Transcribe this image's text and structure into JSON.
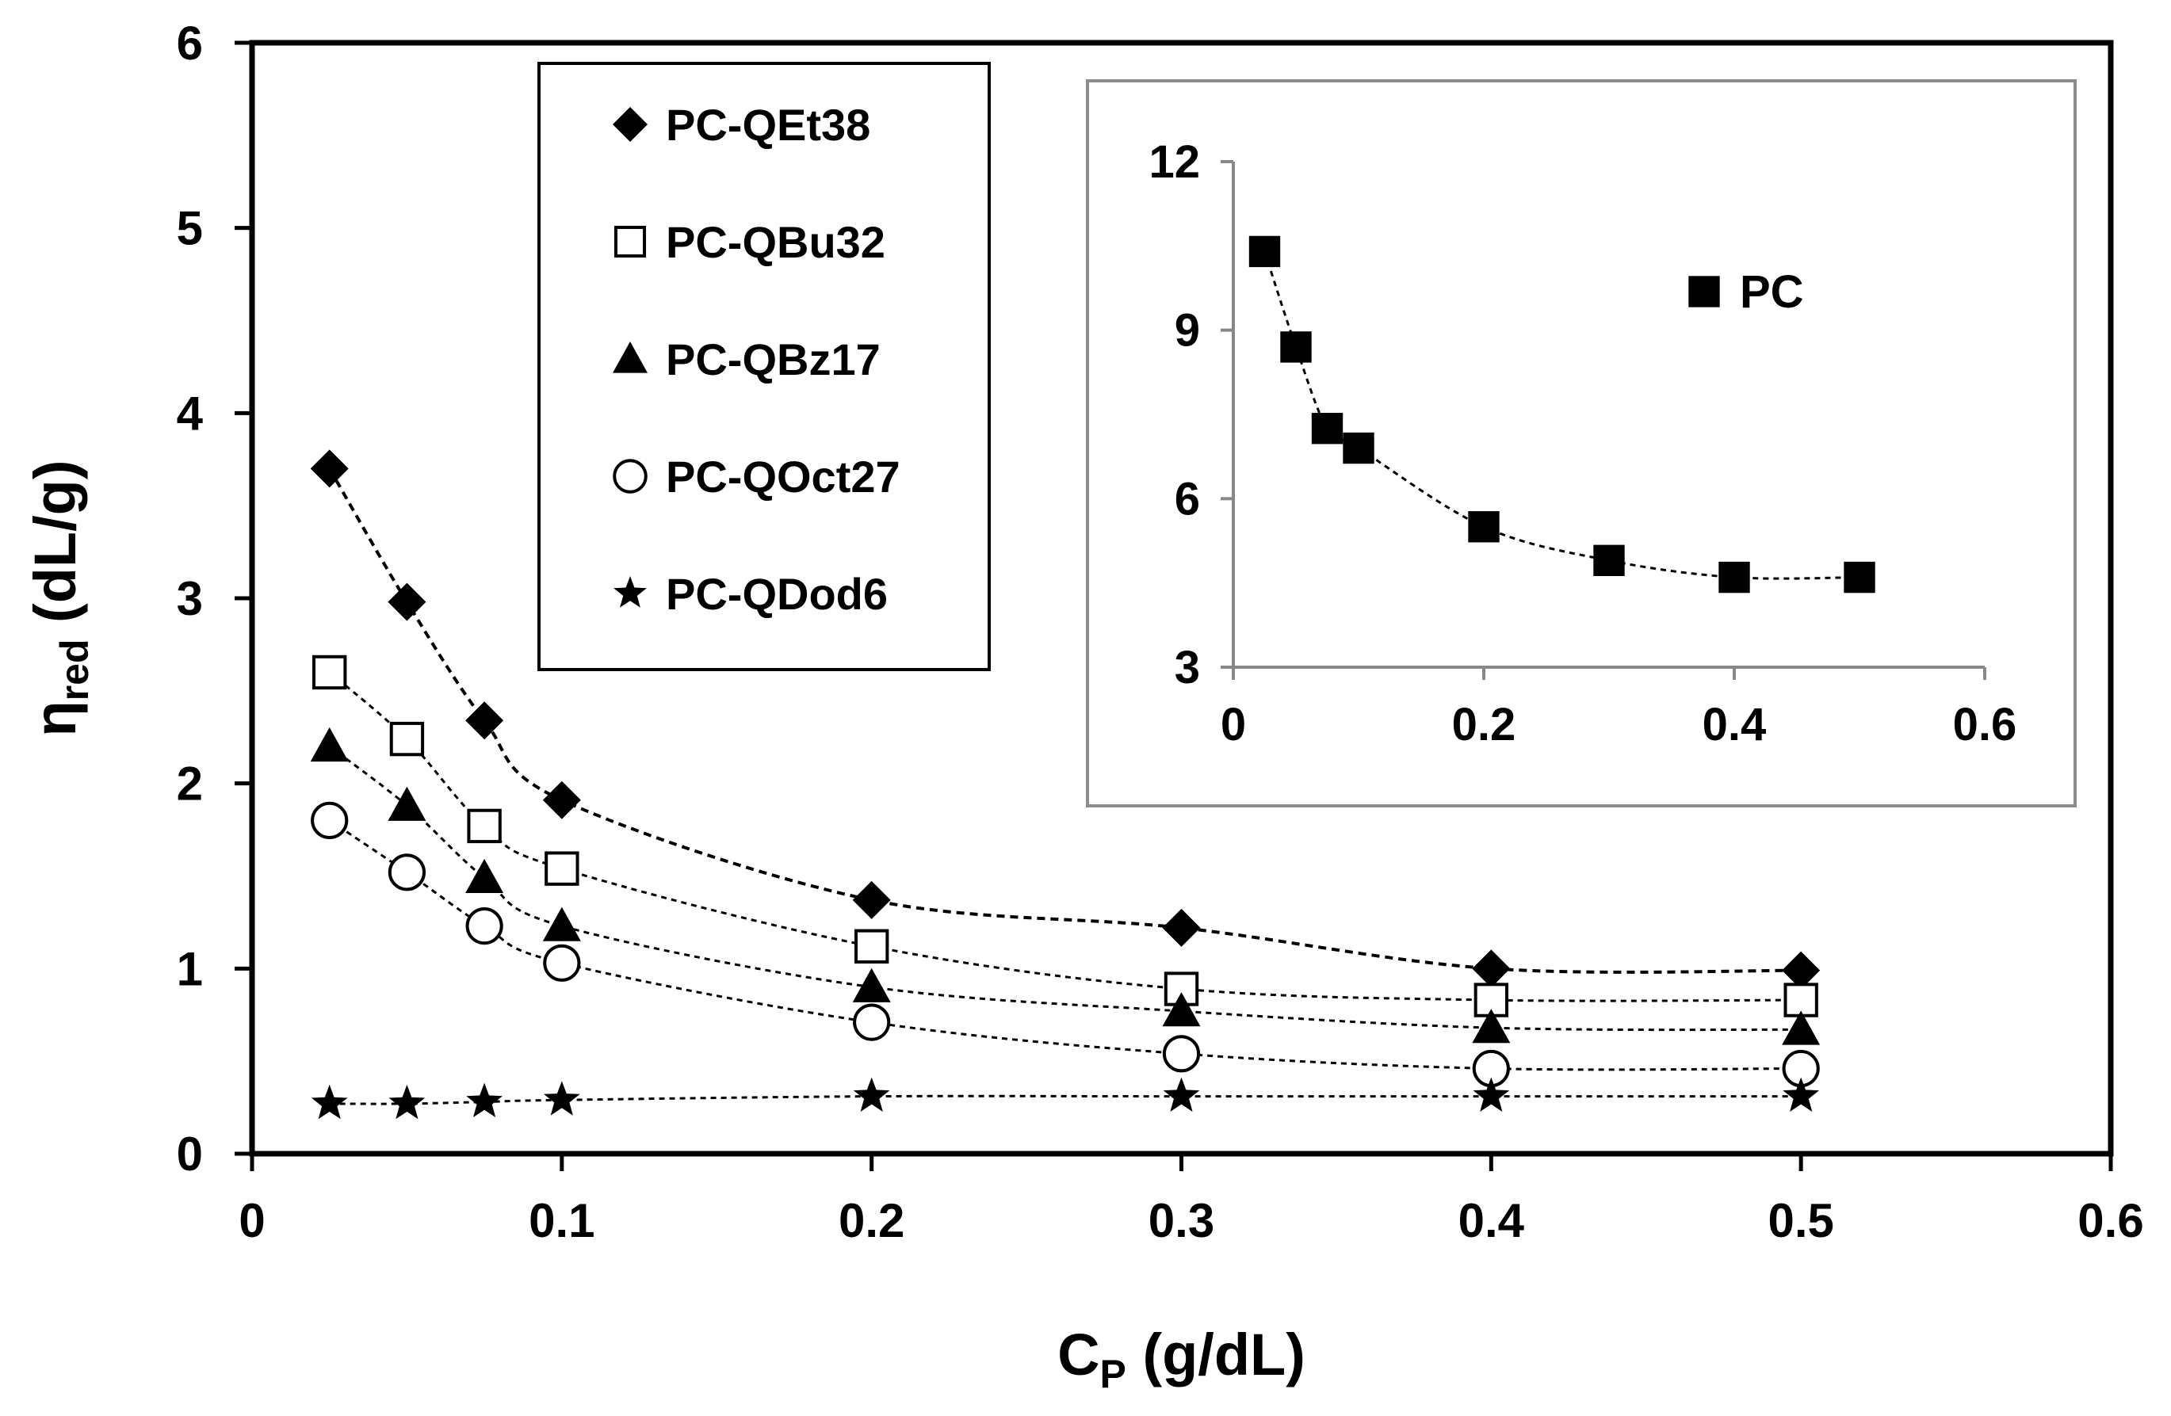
{
  "chart_data": [
    {
      "type": "scatter",
      "title": "",
      "xlabel": "C",
      "xlabel_sub": "P",
      "xlabel_unit": " (g/dL)",
      "ylabel": "η",
      "ylabel_sub": "red",
      "ylabel_unit": " (dL/g)",
      "xlim": [
        0,
        0.6
      ],
      "ylim": [
        0,
        6
      ],
      "xticks": [
        "0",
        "0.1",
        "0.2",
        "0.3",
        "0.4",
        "0.5",
        "0.6"
      ],
      "yticks": [
        "0",
        "1",
        "2",
        "3",
        "4",
        "5",
        "6"
      ],
      "grid": false,
      "legend_position": "top-left",
      "trendline": "dashed fit curve per series",
      "series": [
        {
          "name": "PC-QEt38",
          "marker": "diamond-filled",
          "x": [
            0.025,
            0.05,
            0.075,
            0.1,
            0.2,
            0.3,
            0.4,
            0.5
          ],
          "y": [
            3.7,
            2.98,
            2.34,
            1.91,
            1.37,
            1.22,
            1.0,
            0.99
          ]
        },
        {
          "name": "PC-QBu32",
          "marker": "square-open",
          "x": [
            0.025,
            0.05,
            0.075,
            0.1,
            0.2,
            0.3,
            0.4,
            0.5
          ],
          "y": [
            2.6,
            2.24,
            1.77,
            1.54,
            1.12,
            0.89,
            0.83,
            0.83
          ]
        },
        {
          "name": "PC-QBz17",
          "marker": "triangle-filled",
          "x": [
            0.025,
            0.05,
            0.075,
            0.1,
            0.2,
            0.3,
            0.4,
            0.5
          ],
          "y": [
            2.2,
            1.88,
            1.49,
            1.23,
            0.9,
            0.77,
            0.68,
            0.67
          ]
        },
        {
          "name": "PC-QOct27",
          "marker": "circle-open",
          "x": [
            0.025,
            0.05,
            0.075,
            0.1,
            0.2,
            0.3,
            0.4,
            0.5
          ],
          "y": [
            1.8,
            1.52,
            1.23,
            1.03,
            0.71,
            0.54,
            0.46,
            0.46
          ]
        },
        {
          "name": "PC-QDod6",
          "marker": "star-filled",
          "x": [
            0.025,
            0.05,
            0.075,
            0.1,
            0.2,
            0.3,
            0.4,
            0.5
          ],
          "y": [
            0.27,
            0.27,
            0.28,
            0.29,
            0.31,
            0.31,
            0.31,
            0.31
          ]
        }
      ]
    },
    {
      "type": "scatter",
      "title": "",
      "inset": true,
      "xlim": [
        0,
        0.6
      ],
      "ylim": [
        3,
        12
      ],
      "xticks": [
        "0",
        "0.2",
        "0.4",
        "0.6"
      ],
      "yticks": [
        "3",
        "6",
        "9",
        "12"
      ],
      "grid": false,
      "legend_position": "top-right",
      "trendline": "dashed fit curve",
      "series": [
        {
          "name": "PC",
          "marker": "square-filled",
          "x": [
            0.025,
            0.05,
            0.075,
            0.1,
            0.2,
            0.3,
            0.4,
            0.5
          ],
          "y": [
            10.4,
            8.7,
            7.25,
            6.9,
            5.5,
            4.9,
            4.6,
            4.6
          ]
        }
      ]
    }
  ]
}
